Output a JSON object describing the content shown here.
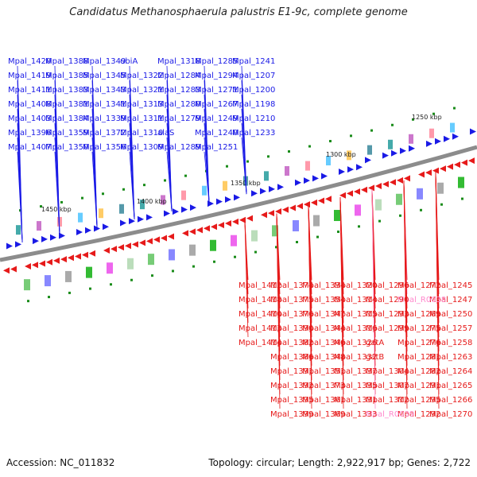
{
  "title": "Candidatus Methanosphaerula palustris E1-9c, complete genome",
  "accession": "Accession: NC_011832",
  "topology": "Topology: circular; Length: 2,922,917 bp; Genes: 2,722",
  "scale_ticks": [
    "1450 kbp",
    "1400 kbp",
    "1350 kbp",
    "1300 kbp",
    "1250 kbp"
  ],
  "forward_labels": [
    "Mpal_1420",
    "Mpal_1419",
    "Mpal_1411",
    "Mpal_1408",
    "Mpal_1403",
    "Mpal_1396",
    "Mpal_1407",
    "Mpal_1388",
    "Mpal_1385",
    "Mpal_1383",
    "Mpal_1381",
    "Mpal_1384",
    "Mpal_1359",
    "Mpal_1350",
    "Mpal_1349",
    "Mpal_1345",
    "Mpal_1343",
    "Mpal_1341",
    "Mpal_1339",
    "Mpal_1372",
    "Mpal_1356",
    "ubiA",
    "Mpal_1322",
    "Mpal_1321",
    "Mpal_1313",
    "Mpal_1311",
    "Mpal_1310",
    "Mpal_1309",
    "Mpal_1318",
    "Mpal_1284",
    "Mpal_1283",
    "Mpal_1280",
    "Mpal_1279",
    "alaS",
    "Mpal_1289",
    "Mpal_1285",
    "Mpal_1294",
    "Mpal_1271",
    "Mpal_1267",
    "Mpal_1249",
    "Mpal_1240",
    "Mpal_1251",
    "Mpal_1241",
    "Mpal_1207",
    "Mpal_1200",
    "Mpal_1198",
    "Mpal_1210",
    "Mpal_1233"
  ],
  "reverse_labels": [
    "Mpal_1245",
    "Mpal_1247",
    "Mpal_1250",
    "Mpal_1257",
    "Mpal_1258",
    "Mpal_1263",
    "Mpal_1264",
    "Mpal_1265",
    "Mpal_1266",
    "Mpal_1270",
    "Mpal_1272",
    "Mpal_R0038",
    "Mpal_1269",
    "Mpal_1275",
    "Mpal_1276",
    "Mpal_1281",
    "Mpal_1282",
    "Mpal_1291",
    "Mpal_1295",
    "Mpal_1292",
    "Mpal_1296",
    "Mpal_1290",
    "Mpal_1293",
    "Mpal_1299",
    "gatA",
    "gatB",
    "Mpal_1304",
    "Mpal_1307",
    "Mpal_1312",
    "Mpal_R0039",
    "Mpal_1320",
    "Mpal_1314",
    "Mpal_1315",
    "Mpal_1316",
    "Mpal_1326",
    "Mpal_1332",
    "Mpal_1337",
    "Mpal_1335",
    "Mpal_1331",
    "Mpal_1333",
    "Mpal_1334",
    "Mpal_1354",
    "Mpal_1347",
    "Mpal_1344",
    "Mpal_1346",
    "Mpal_1348",
    "Mpal_1351",
    "Mpal_1373",
    "Mpal_1361",
    "Mpal_1369",
    "Mpal_1374",
    "Mpal_1375",
    "Mpal_1376",
    "Mpal_1390",
    "Mpal_1382",
    "Mpal_1386",
    "Mpal_1391",
    "Mpal_1392",
    "Mpal_1395",
    "Mpal_1399",
    "Mpal_1412",
    "Mpal_1418",
    "Mpal_1410",
    "Mpal_1413",
    "Mpal_1414"
  ],
  "colors": {
    "forward": "#1a1ae6",
    "reverse": "#e61a1a",
    "rna": "#ff88cc",
    "backbone": "#8c8c8c",
    "cog_marker": "#1a8c1a"
  }
}
